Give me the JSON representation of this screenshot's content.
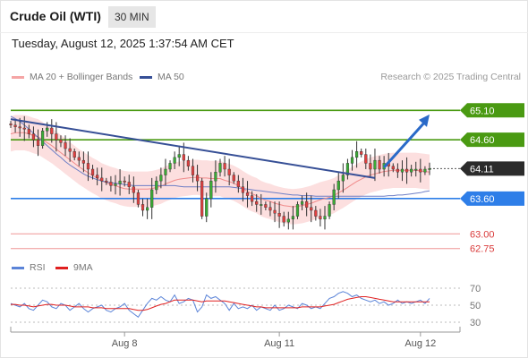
{
  "header": {
    "title": "Crude Oil (WTI)",
    "interval": "30 MIN",
    "timestamp": "Tuesday, August 12, 2025 1:37:54 AM CET"
  },
  "legend": {
    "ma20_bb": "MA 20 + Bollinger Bands",
    "ma50": "MA 50",
    "credit": "Research © 2025 Trading Central"
  },
  "rsi_legend": {
    "rsi": "RSI",
    "ma9": "9MA"
  },
  "colors": {
    "resistance": "#4a9a12",
    "support": "#2e7ee8",
    "weak_level": "#e86a6a",
    "trendline": "#364f96",
    "bollinger": "#fbd4d4",
    "ma20": "#f08a8a",
    "ma50": "#6e7fc6",
    "bull_candle": "#3aaa35",
    "bear_candle": "#e04040",
    "rsi": "#5b84d8",
    "rsi_ma": "#e02020"
  },
  "chart_data": {
    "type": "candlestick",
    "y_range": [
      62.7,
      65.5
    ],
    "x_ticks": [
      "Aug 8",
      "Aug 11",
      "Aug 12"
    ],
    "last_price": 64.11,
    "levels": [
      {
        "value": 65.1,
        "label": "65.10",
        "kind": "resistance",
        "style": "flag"
      },
      {
        "value": 64.6,
        "label": "64.60",
        "kind": "resistance",
        "style": "flag"
      },
      {
        "value": 64.11,
        "label": "64.11",
        "kind": "last",
        "style": "flag"
      },
      {
        "value": 63.6,
        "label": "63.60",
        "kind": "support",
        "style": "flag"
      },
      {
        "value": 63.0,
        "label": "63.00",
        "kind": "weak",
        "style": "text"
      },
      {
        "value": 62.75,
        "label": "62.75",
        "kind": "weak",
        "style": "text"
      }
    ],
    "close": [
      64.85,
      64.82,
      64.8,
      64.78,
      64.7,
      64.6,
      64.5,
      64.75,
      64.8,
      64.7,
      64.6,
      64.55,
      64.45,
      64.4,
      64.3,
      64.25,
      64.2,
      64.1,
      64.0,
      63.95,
      63.9,
      63.88,
      63.82,
      63.85,
      63.9,
      63.88,
      63.8,
      63.7,
      63.5,
      63.4,
      63.45,
      63.75,
      63.9,
      64.0,
      64.1,
      64.2,
      64.3,
      64.35,
      64.25,
      64.15,
      64.0,
      63.9,
      63.3,
      63.6,
      63.9,
      64.05,
      64.2,
      64.1,
      64.0,
      63.9,
      63.8,
      63.7,
      63.65,
      63.55,
      63.5,
      63.5,
      63.45,
      63.4,
      63.35,
      63.3,
      63.2,
      63.25,
      63.3,
      63.5,
      63.55,
      63.45,
      63.4,
      63.3,
      63.25,
      63.3,
      63.5,
      63.75,
      63.9,
      64.0,
      64.2,
      64.3,
      64.4,
      64.35,
      64.2,
      64.1,
      64.25,
      64.1,
      64.2,
      64.15,
      64.1,
      64.05,
      64.1,
      64.05,
      64.1,
      64.1,
      64.05,
      64.1,
      64.11
    ],
    "ma20": [
      64.7,
      64.72,
      64.72,
      64.72,
      64.7,
      64.67,
      64.65,
      64.6,
      64.55,
      64.5,
      64.44,
      64.38,
      64.32,
      64.26,
      64.2,
      64.14,
      64.09,
      64.04,
      63.99,
      63.95,
      63.9,
      63.87,
      63.84,
      63.82,
      63.79,
      63.77,
      63.76,
      63.76,
      63.76,
      63.76,
      63.76,
      63.77,
      63.79,
      63.81,
      63.85,
      63.88,
      63.91,
      63.93,
      63.94,
      63.95,
      63.96,
      63.96,
      63.95,
      63.95,
      63.94,
      63.94,
      63.94,
      63.91,
      63.89,
      63.86,
      63.82,
      63.77,
      63.72,
      63.68,
      63.65,
      63.6,
      63.57,
      63.55,
      63.52,
      63.5,
      63.48,
      63.47,
      63.46,
      63.47,
      63.48,
      63.5,
      63.52,
      63.55,
      63.58,
      63.6,
      63.62,
      63.65,
      63.7,
      63.74,
      63.79,
      63.84,
      63.89,
      63.93,
      63.97,
      64.0,
      64.02,
      64.04,
      64.06,
      64.07,
      64.08,
      64.08,
      64.08,
      64.08,
      64.08,
      64.08,
      64.07,
      64.06,
      64.05
    ],
    "ma50": [
      65.0,
      64.96,
      64.91,
      64.85,
      64.78,
      64.71,
      64.64,
      64.57,
      64.5,
      64.43,
      64.36,
      64.3,
      64.23,
      64.17,
      64.12,
      64.07,
      64.02,
      63.98,
      63.95,
      63.92,
      63.9,
      63.88,
      63.87,
      63.86,
      63.85,
      63.84,
      63.83,
      63.82,
      63.82,
      63.82,
      63.82,
      63.82,
      63.82,
      63.82,
      63.82,
      63.82,
      63.82,
      63.81,
      63.8,
      63.8,
      63.8,
      63.8,
      63.8,
      63.8,
      63.8,
      63.8,
      63.8,
      63.8,
      63.8,
      63.79,
      63.78,
      63.77,
      63.76,
      63.75,
      63.74,
      63.73,
      63.72,
      63.71,
      63.7,
      63.69,
      63.68,
      63.67,
      63.66,
      63.66,
      63.65,
      63.65,
      63.65,
      63.64,
      63.64,
      63.64,
      63.64,
      63.64,
      63.64,
      63.64,
      63.64,
      63.64,
      63.64,
      63.64,
      63.64,
      63.64,
      63.64,
      63.64,
      63.64,
      63.65,
      63.65,
      63.66,
      63.66,
      63.67,
      63.68,
      63.69,
      63.7,
      63.72,
      63.73
    ],
    "bollinger_width": 0.3,
    "trendline": [
      [
        0,
        64.95
      ],
      [
        80,
        63.95
      ]
    ],
    "projection": [
      [
        82,
        64.13
      ],
      [
        92,
        65.03
      ]
    ],
    "rsi": {
      "y_ticks": [
        70,
        50,
        30
      ],
      "rsi": [
        52,
        50,
        48,
        52,
        46,
        44,
        50,
        56,
        54,
        48,
        46,
        52,
        50,
        44,
        48,
        52,
        46,
        42,
        46,
        48,
        50,
        44,
        42,
        46,
        48,
        52,
        44,
        40,
        36,
        44,
        52,
        58,
        56,
        60,
        56,
        54,
        62,
        52,
        54,
        58,
        56,
        42,
        48,
        62,
        58,
        60,
        56,
        52,
        44,
        52,
        46,
        48,
        46,
        50,
        44,
        48,
        46,
        44,
        50,
        44,
        46,
        50,
        48,
        46,
        52,
        50,
        46,
        48,
        46,
        52,
        58,
        60,
        64,
        66,
        64,
        60,
        62,
        58,
        56,
        54,
        56,
        52,
        54,
        50,
        52,
        56,
        52,
        54,
        52,
        54,
        56,
        52,
        58
      ],
      "ma9": [
        51,
        51,
        50,
        50,
        49,
        48,
        49,
        50,
        51,
        51,
        50,
        50,
        50,
        49,
        48,
        48,
        48,
        48,
        47,
        47,
        47,
        46,
        46,
        46,
        46,
        46,
        46,
        45,
        44,
        44,
        45,
        47,
        49,
        51,
        52,
        54,
        56,
        56,
        56,
        56,
        56,
        55,
        54,
        55,
        55,
        55,
        55,
        55,
        54,
        53,
        52,
        51,
        50,
        49,
        48,
        48,
        47,
        47,
        47,
        47,
        47,
        47,
        47,
        47,
        48,
        48,
        48,
        48,
        48,
        49,
        50,
        51,
        53,
        55,
        57,
        58,
        59,
        60,
        60,
        59,
        58,
        57,
        56,
        55,
        54,
        54,
        54,
        54,
        54,
        54,
        54,
        54,
        54
      ]
    }
  }
}
